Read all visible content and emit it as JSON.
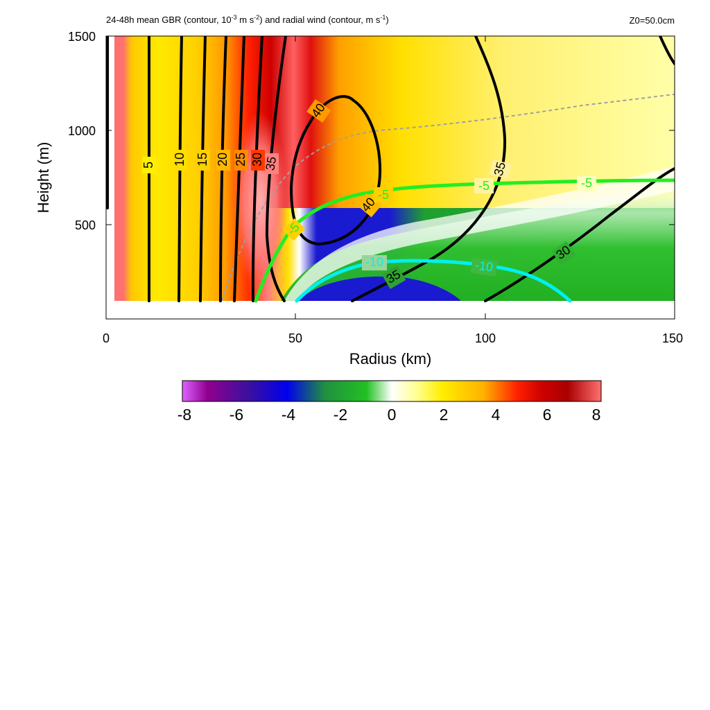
{
  "chart_data": {
    "type": "contour",
    "title": "24-48h mean GBR (contour, 10^-3 m s^-2) and radial wind (contour, m s^-1)",
    "title_parts": {
      "a": "24-48h mean GBR (contour, 10",
      "exp1": "-3",
      "b": " m s",
      "exp2": "-2",
      "c": ") and radial wind (contour, m s",
      "exp3": "-1",
      "d": ")"
    },
    "annotation": "Z0=50.0cm",
    "xlabel": "Radius (km)",
    "ylabel": "Height (m)",
    "xlim": [
      0,
      150
    ],
    "ylim": [
      0,
      1500
    ],
    "xticks": [
      "0",
      "50",
      "100",
      "150"
    ],
    "yticks": [
      "500",
      "1000",
      "1500"
    ],
    "colorbar": {
      "range": [
        -8,
        8
      ],
      "ticks": [
        "-8",
        "-6",
        "-4",
        "-2",
        "0",
        "2",
        "4",
        "6",
        "8"
      ],
      "colors": {
        "-8": "#e060ff",
        "-7": "#90008f",
        "-5.5": "#3a109e",
        "-4": "#0000ee",
        "-2.5": "#20a020",
        "-1": "#22c022",
        "0": "#ffffff",
        "0.8": "#ffff90",
        "2": "#ffee00",
        "3.5": "#ffb000",
        "5": "#ff2000",
        "6": "#cc0000",
        "7": "#aa0000",
        "8": "#ff7070"
      }
    },
    "contour_labels": {
      "tangential_wind": [
        "5",
        "10",
        "15",
        "20",
        "25",
        "30",
        "35",
        "40",
        "40",
        "35",
        "35",
        "30"
      ],
      "radial_wind": [
        "-5",
        "-5",
        "-5",
        "-5",
        "-10",
        "-10"
      ]
    },
    "colors": {
      "tangential_contour": "#000000",
      "radial_minus5": "#22ee22",
      "radial_minus10": "#00f0f0",
      "dashed_line": "#a0a0a0"
    }
  }
}
